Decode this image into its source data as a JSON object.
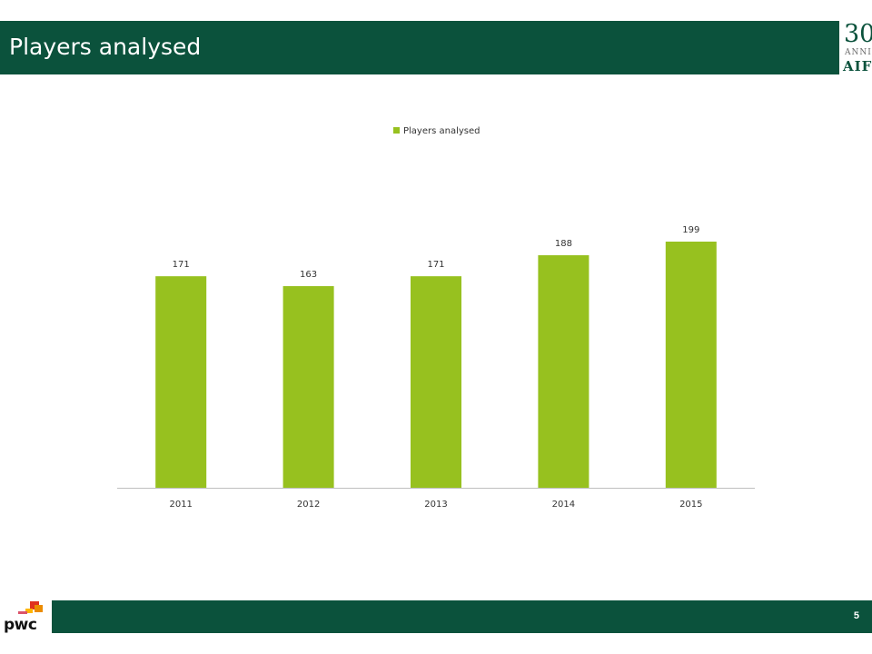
{
  "header": {
    "title": "Players analysed"
  },
  "aifi_logo": {
    "number": "30",
    "anni": "ANNI",
    "word": "AIFI"
  },
  "chart_data": {
    "type": "bar",
    "categories": [
      "2011",
      "2012",
      "2013",
      "2014",
      "2015"
    ],
    "series": [
      {
        "name": "Players analysed",
        "values": [
          171,
          163,
          171,
          188,
          199
        ]
      }
    ],
    "ylim": [
      0,
      199
    ],
    "legend": "top-center",
    "grid": false,
    "data_labels": true,
    "bar_color": "#97c11f"
  },
  "footer": {
    "logo_text": "pwc",
    "page_number": "5"
  }
}
